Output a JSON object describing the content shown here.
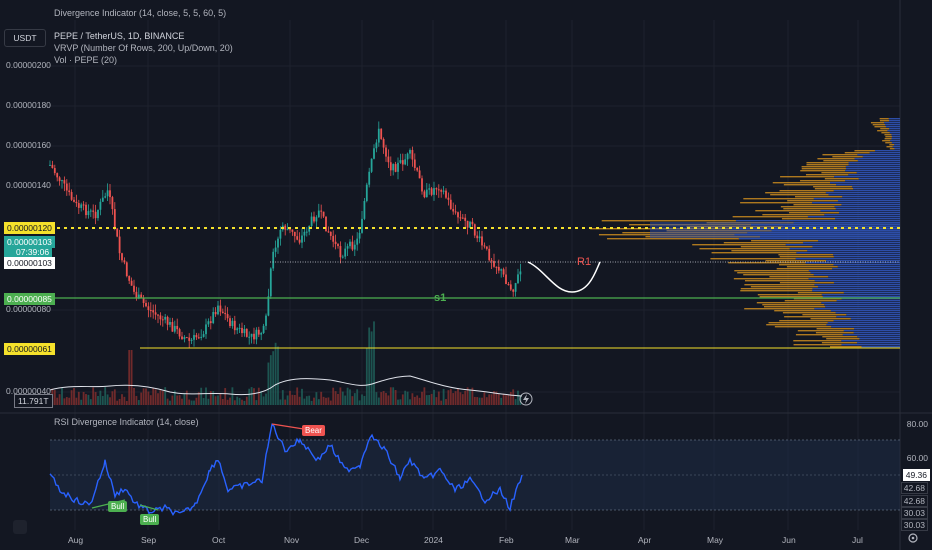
{
  "header_title": "Divergence Indicator (14, close, 5, 5, 60, 5)",
  "currency_button": "USDT",
  "legend": {
    "symbol_line": "PEPE / TetherUS, 1D, BINANCE",
    "vrvp_line": "VRVP (Number Of Rows, 200, Up/Down, 20)",
    "vol_line": "Vol · PEPE (20)"
  },
  "price_axis": [
    {
      "label": "0.00000200",
      "value": 2e-06
    },
    {
      "label": "0.00000180",
      "value": 1.8e-06
    },
    {
      "label": "0.00000160",
      "value": 1.6e-06
    },
    {
      "label": "0.00000140",
      "value": 1.4e-06
    },
    {
      "label": "0.00000080",
      "value": 8e-07
    },
    {
      "label": "0.00000040",
      "value": 4e-07
    }
  ],
  "price_badges": {
    "level_120": "0.00000120",
    "current_price": "0.00000103",
    "countdown": "07:39:06",
    "level_103": "0.00000103",
    "level_85": "0.00000085",
    "level_61": "0.00000061",
    "volume": "11.791T"
  },
  "annotations": {
    "resistance": "R1",
    "support": "s1"
  },
  "rsi": {
    "title": "RSI Divergence Indicator (14, close)",
    "axis": [
      "80.00",
      "60.00"
    ],
    "value_current": "49.36",
    "value_labels": [
      "42.68",
      "42.68",
      "30.03",
      "30.03"
    ],
    "bear_label": "Bear",
    "bull_labels": [
      "Bull",
      "Bull"
    ]
  },
  "time_axis": [
    "Aug",
    "Sep",
    "Oct",
    "Nov",
    "Dec",
    "2024",
    "Feb",
    "Mar",
    "Apr",
    "May",
    "Jun",
    "Jul"
  ],
  "colors": {
    "background": "#131722",
    "up_candle": "#26a69a",
    "down_candle": "#ef5350",
    "level_yellow": "#f5e12b",
    "level_green": "#4caf50",
    "rsi_line": "#2962ff",
    "profile_blue": "#2d4ea8",
    "profile_orange": "#c98a1e"
  },
  "icons": [
    "flash-icon",
    "gear-icon",
    "tradingview-logo-icon"
  ]
}
